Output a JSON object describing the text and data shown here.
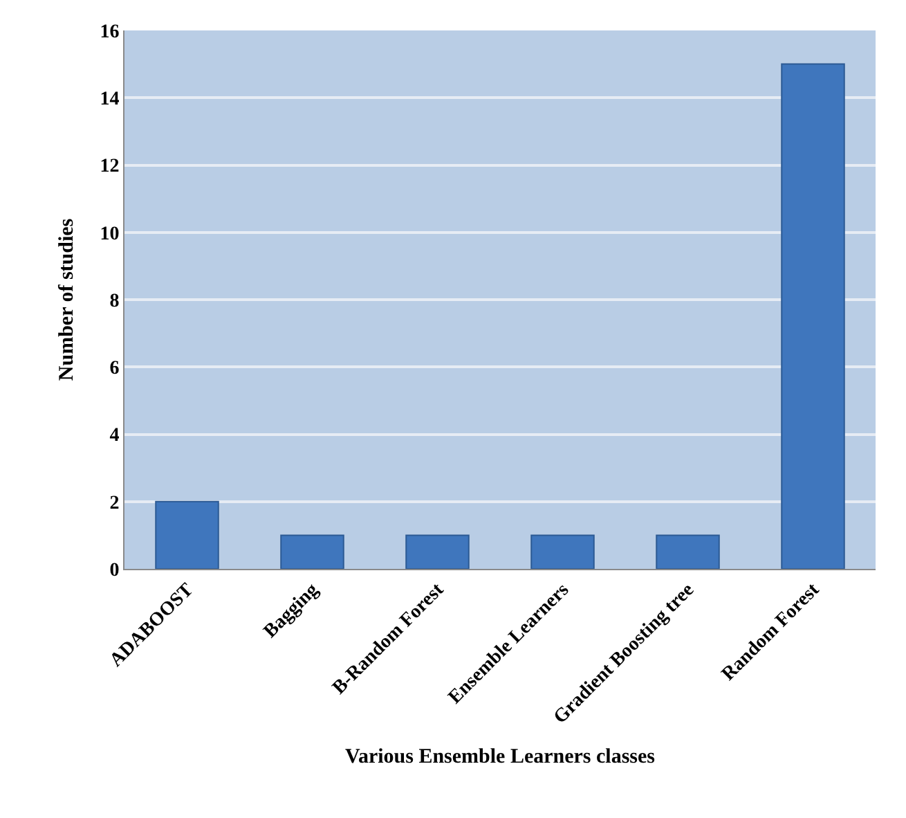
{
  "chart_data": {
    "type": "bar",
    "xlabel": "Various Ensemble Learners classes",
    "ylabel": "Number of studies",
    "categories": [
      "ADABOOST",
      "Bagging",
      "B-Random Forest",
      "Ensemble Learners",
      "Gradient Boosting tree",
      "Random Forest"
    ],
    "values": [
      2,
      1,
      1,
      1,
      1,
      15
    ],
    "color": "#3f76bd",
    "ylim": [
      0,
      16
    ],
    "yticks": [
      0,
      2,
      4,
      6,
      8,
      10,
      12,
      14,
      16
    ],
    "grid": "y"
  }
}
